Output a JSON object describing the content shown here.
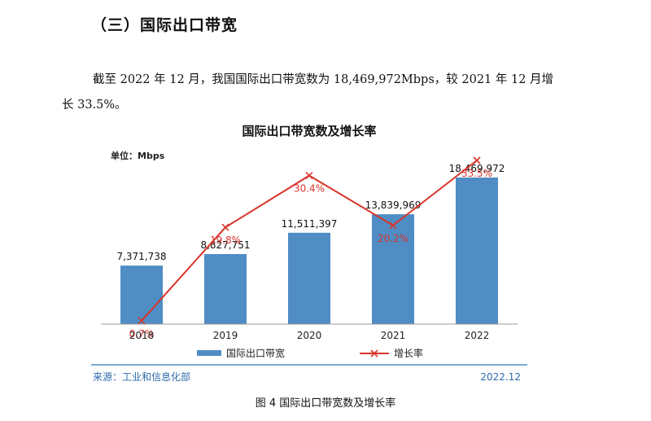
{
  "section": {
    "heading": "（三）国际出口带宽"
  },
  "paragraph": {
    "line1": "截至 2022 年 12 月，我国国际出口带宽数为 18,469,972Mbps，较 2021 年 12 月增",
    "line2": "长 33.5%。"
  },
  "figure": {
    "caption": "图 4  国际出口带宽数及增长率",
    "source": "来源：工业和信息化部",
    "date": "2022.12"
  },
  "colors": {
    "bar": "#4f8dc4",
    "line": "#d9342b",
    "rule": "#4f8dc4"
  },
  "chart_data": {
    "type": "bar",
    "title": "国际出口带宽数及增长率",
    "unit_label": "单位：Mbps",
    "categories": [
      "2018",
      "2019",
      "2020",
      "2021",
      "2022"
    ],
    "series": [
      {
        "name": "国际出口带宽",
        "type": "bar",
        "values": [
          7371738,
          8827751,
          11511397,
          13839969,
          18469972
        ],
        "labels": [
          "7,371,738",
          "8,827,751",
          "11,511,397",
          "13,839,969",
          "18,469,972"
        ]
      },
      {
        "name": "增长率",
        "type": "line",
        "marker": "x",
        "values": [
          0.7,
          19.8,
          30.4,
          20.2,
          33.5
        ],
        "labels": [
          "0.7%",
          "19.8%",
          "30.4%",
          "20.2%",
          "33.5%"
        ]
      }
    ],
    "legend": "bottom",
    "grid": false
  }
}
